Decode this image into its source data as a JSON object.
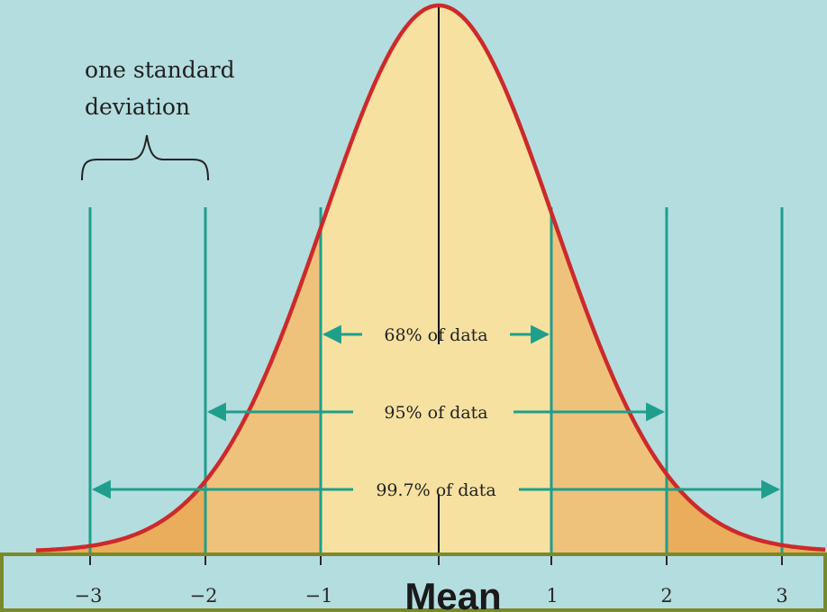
{
  "annotation": {
    "line1": "one standard",
    "line2": "deviation"
  },
  "ranges": [
    {
      "label": "68% of data",
      "from": -1,
      "to": 1
    },
    {
      "label": "95% of data",
      "from": -2,
      "to": 2
    },
    {
      "label": "99.7% of data",
      "from": -3,
      "to": 3
    }
  ],
  "axis": {
    "ticks": [
      "−3",
      "−2",
      "−1",
      "1",
      "2",
      "3"
    ],
    "mean_label": "Mean"
  },
  "colors": {
    "background": "#b4dde0",
    "curve": "#cc2a2a",
    "band_center": "#f7e1a1",
    "band_mid": "#f3d390",
    "band_outer": "#efc27c",
    "band_tail": "#e9ad5c",
    "guide_lines": "#1f9e8c",
    "axis_box": "#7a8a2a"
  }
}
